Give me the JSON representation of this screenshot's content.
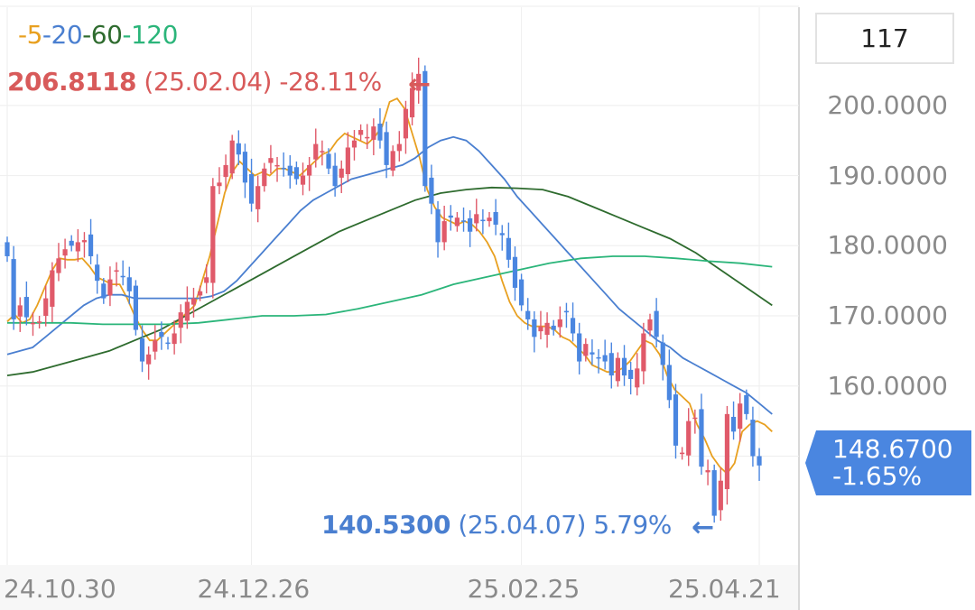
{
  "legend": [
    {
      "prefix": "-",
      "label": "5",
      "color": "#e8a020"
    },
    {
      "prefix": "-",
      "label": "20",
      "color": "#4a7fd0"
    },
    {
      "prefix": "-",
      "label": "60",
      "color": "#2e6b2e"
    },
    {
      "prefix": "-",
      "label": "120",
      "color": "#2bb57a"
    }
  ],
  "period_box": "117",
  "high_annotation": {
    "value": "206.8118",
    "date": "(25.02.04)",
    "change": "-28.11%",
    "arrow": "←",
    "color": "#d85a5a"
  },
  "low_annotation": {
    "value": "140.5300",
    "date": "(25.04.07)",
    "change": "5.79%",
    "arrow": "←",
    "color": "#4a7fd0"
  },
  "current_price": {
    "price": "148.6700",
    "change": "-1.65%"
  },
  "colors": {
    "up": "#e05a6a",
    "down": "#4a86e0",
    "grid": "#eeeeee"
  },
  "chart_data": {
    "type": "candlestick",
    "y_axis": {
      "ticks": [
        "200.0000",
        "190.0000",
        "180.0000",
        "170.0000",
        "160.0000"
      ],
      "range": [
        134.5,
        214
      ]
    },
    "x_axis": {
      "ticks": [
        {
          "label": "24.10.30",
          "index": 0
        },
        {
          "label": "24.12.26",
          "index": 38
        },
        {
          "label": "25.02.25",
          "index": 80
        },
        {
          "label": "25.04.21",
          "index": 117
        }
      ]
    },
    "close": [
      178.5,
      169.5,
      171.5,
      169.8,
      169.0,
      169.2,
      172.5,
      176.5,
      178.2,
      179.5,
      180.0,
      180.5,
      180.8,
      178.5,
      175.0,
      172.5,
      175.2,
      176.5,
      175.5,
      173.5,
      168.0,
      163.5,
      164.5,
      166.5,
      167.0,
      166.0,
      167.5,
      170.5,
      172.0,
      172.5,
      173.5,
      175.5,
      188.5,
      189.0,
      191.5,
      195.0,
      193.0,
      189.0,
      186.0,
      188.5,
      191.0,
      192.5,
      191.5,
      191.0,
      190.0,
      189.5,
      190.0,
      191.5,
      194.5,
      193.5,
      191.0,
      188.5,
      191.0,
      194.0,
      195.0,
      196.5,
      195.5,
      197.0,
      195.0,
      191.5,
      193.5,
      194.5,
      199.5,
      202.5,
      204.5,
      188.5,
      186.0,
      180.5,
      183.5,
      184.0,
      184.0,
      183.5,
      182.0,
      184.5,
      183.5,
      184.0,
      183.0,
      181.5,
      178.0,
      174.0,
      171.5,
      169.5,
      167.0,
      168.5,
      169.0,
      168.0,
      169.5,
      170.5,
      167.5,
      163.5,
      166.0,
      164.5,
      164.0,
      163.5,
      161.5,
      164.0,
      161.5,
      161.0,
      162.5,
      167.5,
      169.5,
      167.0,
      163.0,
      158.0,
      151.5,
      150.5,
      155.0,
      155.5,
      148.5,
      148.0,
      141.5,
      146.5,
      156.0,
      153.5,
      157.5,
      156.0,
      150.0,
      148.67
    ],
    "high": 206.8118,
    "high_index": 64,
    "low": 140.53,
    "low_index": 110,
    "ma_series": [
      {
        "name": "5",
        "color": "#e8a020",
        "values": [
          169.2,
          170.2,
          169.0,
          169.5,
          171.5,
          174.0,
          176.5,
          178.2,
          178.0,
          178.0,
          178.2,
          177.0,
          175.5,
          175.0,
          174.5,
          174.5,
          172.5,
          170.0,
          168.0,
          166.5,
          166.5,
          167.5,
          168.5,
          169.5,
          170.5,
          171.5,
          175.0,
          178.5,
          183.0,
          187.5,
          190.5,
          192.0,
          191.0,
          190.0,
          190.5,
          190.0,
          191.0,
          191.0,
          190.5,
          190.0,
          191.0,
          192.0,
          193.0,
          193.5,
          195.0,
          196.0,
          195.5,
          195.0,
          194.5,
          195.5,
          197.0,
          200.5,
          201.0,
          199.5,
          196.0,
          192.5,
          188.0,
          185.5,
          184.0,
          183.5,
          183.0,
          183.5,
          183.0,
          182.0,
          180.5,
          178.5,
          175.0,
          172.0,
          170.0,
          169.0,
          168.5,
          168.5,
          168.5,
          168.0,
          167.0,
          166.5,
          165.5,
          164.5,
          163.0,
          162.5,
          162.0,
          162.0,
          162.5,
          163.5,
          165.0,
          166.5,
          166.0,
          164.5,
          161.5,
          159.5,
          158.5,
          157.5,
          154.5,
          152.5,
          150.0,
          148.5,
          147.5,
          149.0,
          153.5,
          154.5,
          155.0,
          154.5,
          153.5
        ]
      },
      {
        "name": "20",
        "color": "#4a7fd0",
        "values": [
          164.5,
          165.0,
          165.5,
          167.0,
          168.5,
          170.0,
          171.5,
          172.5,
          173.0,
          173.0,
          172.5,
          172.5,
          172.5,
          172.5,
          172.5,
          172.5,
          172.8,
          173.5,
          175.0,
          177.0,
          179.0,
          181.0,
          183.0,
          185.0,
          186.5,
          187.5,
          188.5,
          189.5,
          190.0,
          190.5,
          191.0,
          191.5,
          192.5,
          194.0,
          195.0,
          195.5,
          195.0,
          193.5,
          191.5,
          189.5,
          187.0,
          185.0,
          183.0,
          181.0,
          179.0,
          177.0,
          175.0,
          173.0,
          171.0,
          169.5,
          168.0,
          166.5,
          165.5,
          164.0,
          163.0,
          162.0,
          161.0,
          160.0,
          159.0,
          157.5,
          156.0
        ]
      },
      {
        "name": "60",
        "color": "#2e6b2e",
        "values": [
          161.5,
          162.0,
          163.0,
          164.0,
          165.0,
          166.5,
          168.0,
          170.0,
          172.0,
          174.0,
          176.0,
          178.0,
          180.0,
          182.0,
          183.5,
          185.0,
          186.5,
          187.5,
          188.0,
          188.3,
          188.2,
          188.0,
          187.0,
          185.5,
          184.0,
          182.5,
          181.0,
          179.0,
          176.5,
          174.0,
          171.5
        ]
      },
      {
        "name": "120",
        "color": "#2bb57a",
        "values": [
          169.0,
          169.0,
          169.0,
          168.8,
          168.8,
          168.8,
          169.0,
          169.5,
          170.0,
          170.0,
          170.2,
          171.0,
          172.0,
          173.0,
          174.5,
          175.5,
          176.5,
          177.5,
          178.2,
          178.5,
          178.5,
          178.2,
          177.8,
          177.5,
          177.0
        ]
      }
    ]
  }
}
